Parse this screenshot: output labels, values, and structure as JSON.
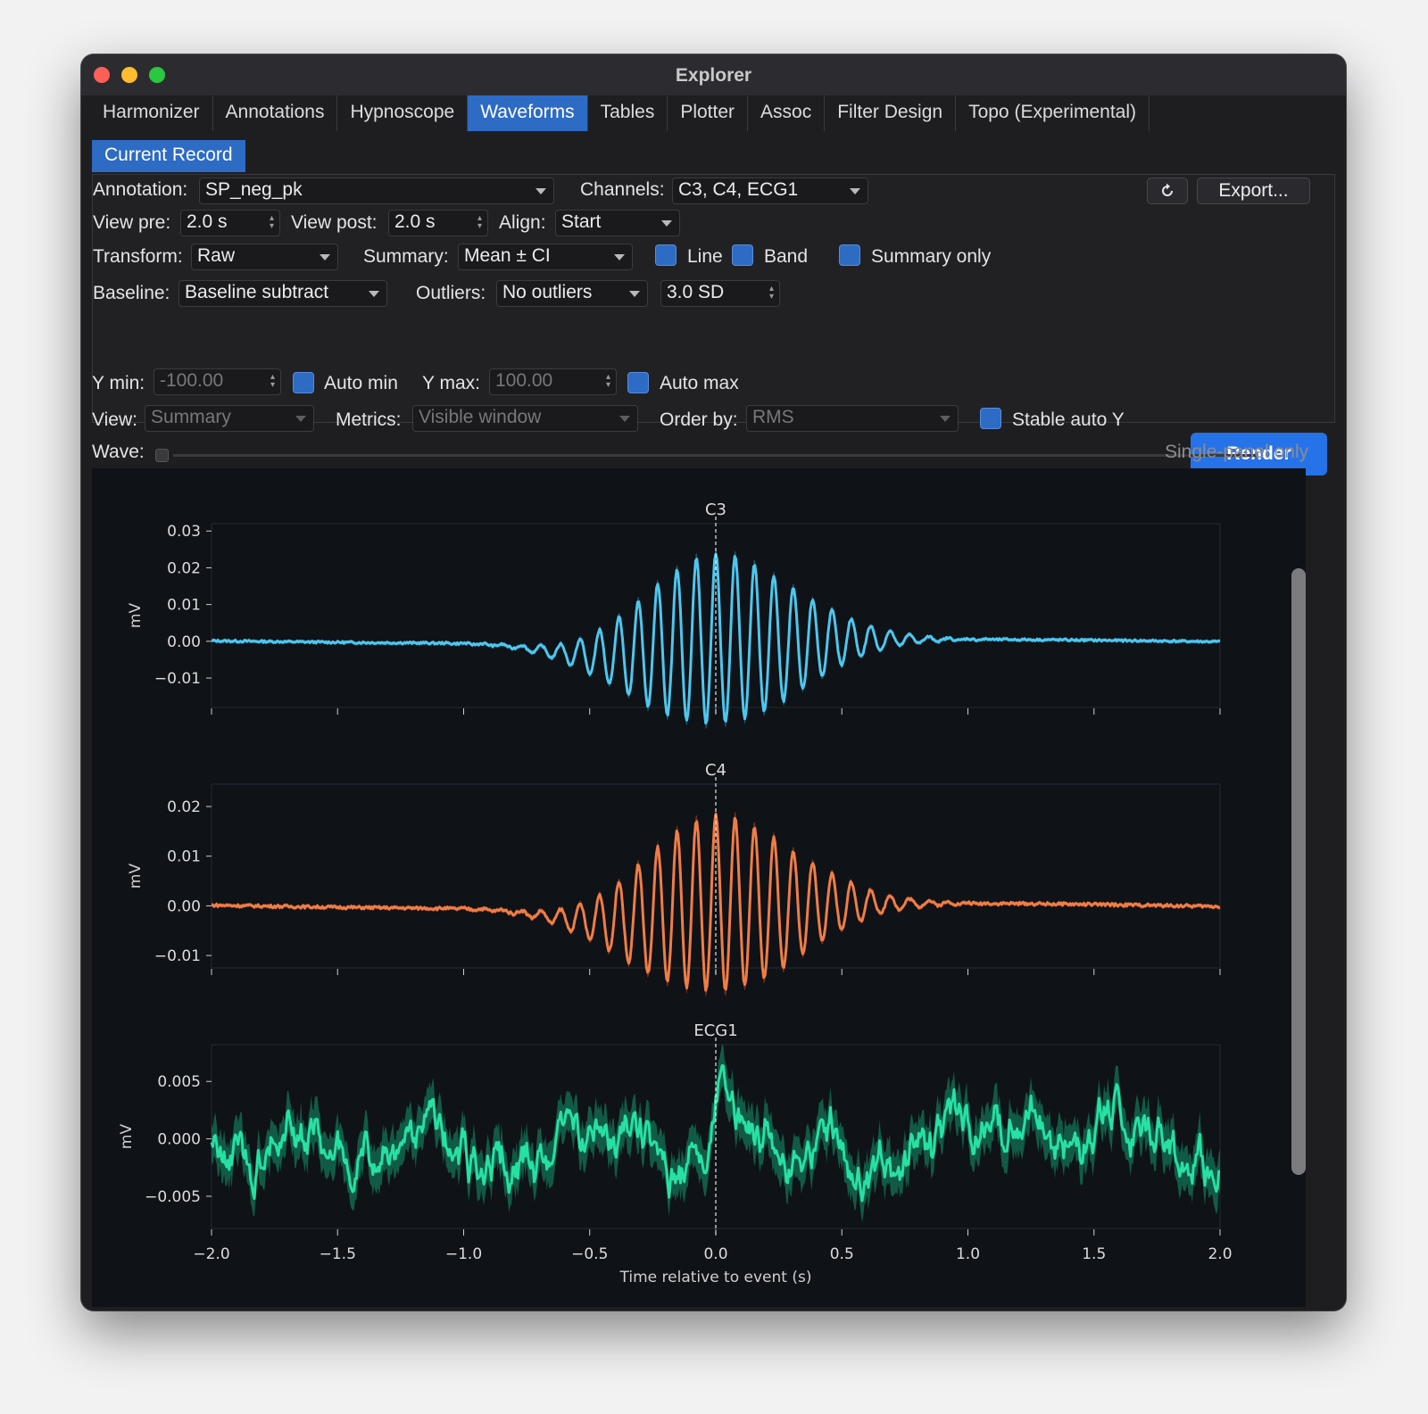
{
  "window": {
    "title": "Explorer"
  },
  "tabs": [
    "Harmonizer",
    "Annotations",
    "Hypnoscope",
    "Waveforms",
    "Tables",
    "Plotter",
    "Assoc",
    "Filter Design",
    "Topo (Experimental)"
  ],
  "active_tab": "Waveforms",
  "subtab": "Current Record",
  "controls": {
    "annotation_label": "Annotation:",
    "annotation_value": "SP_neg_pk",
    "channels_label": "Channels:",
    "channels_value": "C3, C4, ECG1",
    "refresh_icon": "refresh-icon",
    "export_label": "Export...",
    "view_pre_label": "View pre:",
    "view_pre_value": "2.0 s",
    "view_post_label": "View post:",
    "view_post_value": "2.0 s",
    "align_label": "Align:",
    "align_value": "Start",
    "transform_label": "Transform:",
    "transform_value": "Raw",
    "summary_label": "Summary:",
    "summary_value": "Mean ± CI",
    "line_label": "Line",
    "band_label": "Band",
    "summary_only_label": "Summary only",
    "baseline_label": "Baseline:",
    "baseline_value": "Baseline subtract",
    "outliers_label": "Outliers:",
    "outliers_value": "No outliers",
    "sd_value": "3.0 SD",
    "render_label": "Render",
    "ymin_label": "Y min:",
    "ymin_value": "-100.00",
    "auto_min_label": "Auto min",
    "ymax_label": "Y max:",
    "ymax_value": "100.00",
    "auto_max_label": "Auto max",
    "view_label": "View:",
    "view_value": "Summary",
    "metrics_label": "Metrics:",
    "metrics_value": "Visible window",
    "order_label": "Order by:",
    "order_value": "RMS",
    "stable_label": "Stable auto Y",
    "wave_label": "Wave:",
    "single_panel_label": "Single-panel only"
  },
  "chart_data": [
    {
      "type": "line",
      "title": "C3",
      "ylabel": "mV",
      "xlabel": "",
      "x_range": [
        -2.0,
        2.0
      ],
      "ylim": [
        -0.018,
        0.032
      ],
      "yticks": [
        "0.03",
        "0.02",
        "0.01",
        "0.00",
        "−0.01"
      ],
      "ytick_values": [
        0.03,
        0.02,
        0.01,
        0.0,
        -0.01
      ],
      "color": "#4cc7ee",
      "band_color": "#1f5f78",
      "signal": {
        "kind": "spindle",
        "amplitude": 0.021,
        "frequency_hz": 13,
        "envelope_width_s": 0.32,
        "peak_value": 0.029,
        "trough_value": -0.015,
        "baseline": 0.0005,
        "ci_halfwidth": 0.0015
      }
    },
    {
      "type": "line",
      "title": "C4",
      "ylabel": "mV",
      "xlabel": "",
      "x_range": [
        -2.0,
        2.0
      ],
      "ylim": [
        -0.0125,
        0.0245
      ],
      "yticks": [
        "0.02",
        "0.01",
        "0.00",
        "−0.01"
      ],
      "ytick_values": [
        0.02,
        0.01,
        0.0,
        -0.01
      ],
      "color": "#f07d45",
      "band_color": "#7a3a20",
      "signal": {
        "kind": "spindle",
        "amplitude": 0.016,
        "frequency_hz": 13,
        "envelope_width_s": 0.32,
        "peak_value": 0.022,
        "trough_value": -0.01,
        "baseline": 0.0005,
        "ci_halfwidth": 0.0012
      }
    },
    {
      "type": "line",
      "title": "ECG1",
      "ylabel": "mV",
      "xlabel": "Time relative to event (s)",
      "x_range": [
        -2.0,
        2.0
      ],
      "ylim": [
        -0.0078,
        0.0082
      ],
      "yticks": [
        "0.005",
        "0.000",
        "−0.005"
      ],
      "ytick_values": [
        0.005,
        0.0,
        -0.005
      ],
      "xticks": [
        "−2.0",
        "−1.5",
        "−1.0",
        "−0.5",
        "0.0",
        "0.5",
        "1.0",
        "1.5",
        "2.0"
      ],
      "xtick_values": [
        -2.0,
        -1.5,
        -1.0,
        -0.5,
        0.0,
        0.5,
        1.0,
        1.5,
        2.0
      ],
      "color": "#27e0a3",
      "band_color": "#12694f",
      "signal": {
        "kind": "noise",
        "amplitude": 0.0022,
        "peak_value": 0.0055,
        "ci_halfwidth": 0.0018
      }
    }
  ]
}
